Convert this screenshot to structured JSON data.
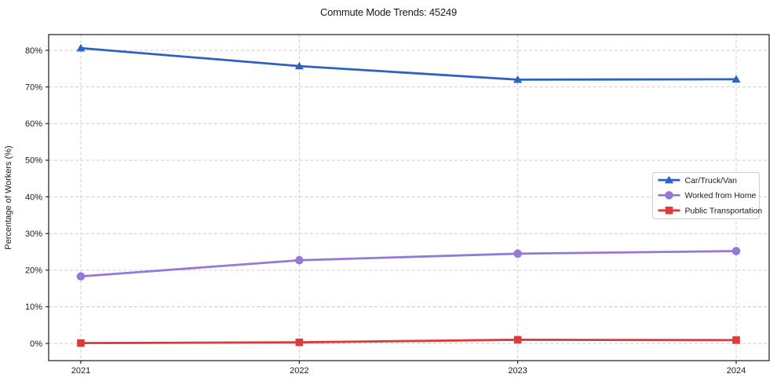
{
  "figure": {
    "background": "#ffffff"
  },
  "chart_data": {
    "type": "line",
    "title": "Commute Mode Trends: 45249",
    "xlabel": "",
    "ylabel": "Percentage of Workers (%)",
    "categories": [
      "2021",
      "2022",
      "2023",
      "2024"
    ],
    "series": [
      {
        "name": "Car/Truck/Van",
        "color": "#2d62c3",
        "marker": "triangle",
        "values": [
          80.6,
          75.7,
          72.0,
          72.1
        ]
      },
      {
        "name": "Worked from Home",
        "color": "#9678d9",
        "marker": "circle",
        "values": [
          18.3,
          22.7,
          24.5,
          25.2
        ]
      },
      {
        "name": "Public Transportation",
        "color": "#dd3b3b",
        "marker": "square",
        "values": [
          0.1,
          0.3,
          1.0,
          0.9
        ]
      }
    ],
    "ylim": [
      -4.7,
      84.3
    ],
    "yticks": [
      0,
      10,
      20,
      30,
      40,
      50,
      60,
      70,
      80
    ],
    "ytick_labels": [
      "0%",
      "10%",
      "20%",
      "30%",
      "40%",
      "50%",
      "60%",
      "70%",
      "80%"
    ],
    "grid": true,
    "legend_position": "center-right"
  },
  "colors": {
    "grid": "#cccccc",
    "spine": "#1a1a1a",
    "text": "#1a1a1a",
    "legend_border": "#cccccc",
    "background": "#ffffff"
  }
}
